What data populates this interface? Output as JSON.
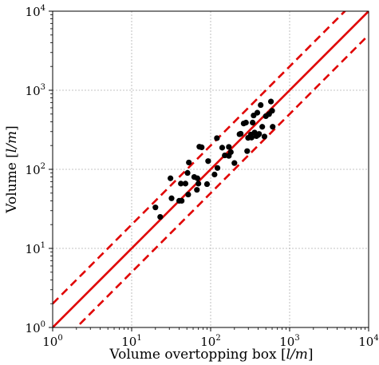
{
  "chart_data": {
    "type": "scatter",
    "xlabel": {
      "prefix": "Volume overtopping box [",
      "unit": "l/m",
      "suffix": "]"
    },
    "ylabel": {
      "prefix": "Volume [",
      "unit": "l/m",
      "suffix": "]"
    },
    "xscale": "log",
    "yscale": "log",
    "xlim": [
      1,
      10000
    ],
    "ylim": [
      1,
      10000
    ],
    "grid": true,
    "xticks": [
      {
        "base": "10",
        "exp": "0"
      },
      {
        "base": "10",
        "exp": "1"
      },
      {
        "base": "10",
        "exp": "2"
      },
      {
        "base": "10",
        "exp": "3"
      },
      {
        "base": "10",
        "exp": "4"
      }
    ],
    "yticks": [
      {
        "base": "10",
        "exp": "0"
      },
      {
        "base": "10",
        "exp": "1"
      },
      {
        "base": "10",
        "exp": "2"
      },
      {
        "base": "10",
        "exp": "3"
      },
      {
        "base": "10",
        "exp": "4"
      }
    ],
    "lines": [
      {
        "kind": "y = x",
        "factor": 1,
        "color": "#e00000",
        "style": "solid"
      },
      {
        "kind": "y = 2x",
        "factor": 2,
        "color": "#e00000",
        "style": "dashed"
      },
      {
        "kind": "y = x/2",
        "factor": 0.5,
        "color": "#e00000",
        "style": "dashed"
      }
    ],
    "point_color": "#000000",
    "points": [
      [
        20,
        33
      ],
      [
        23,
        25
      ],
      [
        31,
        77
      ],
      [
        32,
        43
      ],
      [
        40,
        40
      ],
      [
        42,
        66
      ],
      [
        43,
        40
      ],
      [
        48,
        66
      ],
      [
        51,
        90
      ],
      [
        52,
        48
      ],
      [
        53,
        122
      ],
      [
        62,
        80
      ],
      [
        67,
        55
      ],
      [
        68,
        77
      ],
      [
        70,
        66
      ],
      [
        72,
        193
      ],
      [
        77,
        190
      ],
      [
        90,
        65
      ],
      [
        93,
        127
      ],
      [
        112,
        86
      ],
      [
        120,
        248
      ],
      [
        122,
        104
      ],
      [
        140,
        188
      ],
      [
        151,
        150
      ],
      [
        170,
        148
      ],
      [
        170,
        192
      ],
      [
        180,
        165
      ],
      [
        200,
        120
      ],
      [
        232,
        278
      ],
      [
        240,
        282
      ],
      [
        262,
        380
      ],
      [
        280,
        390
      ],
      [
        290,
        170
      ],
      [
        298,
        250
      ],
      [
        323,
        275
      ],
      [
        330,
        252
      ],
      [
        340,
        390
      ],
      [
        350,
        480
      ],
      [
        360,
        292
      ],
      [
        380,
        263
      ],
      [
        390,
        520
      ],
      [
        400,
        272
      ],
      [
        410,
        280
      ],
      [
        430,
        650
      ],
      [
        450,
        345
      ],
      [
        480,
        260
      ],
      [
        500,
        470
      ],
      [
        550,
        500
      ],
      [
        580,
        720
      ],
      [
        600,
        550
      ],
      [
        610,
        345
      ]
    ]
  }
}
